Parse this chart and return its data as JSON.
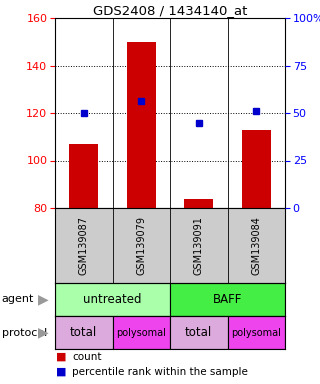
{
  "title": "GDS2408 / 1434140_at",
  "samples": [
    "GSM139087",
    "GSM139079",
    "GSM139091",
    "GSM139084"
  ],
  "bar_values": [
    107,
    150,
    84,
    113
  ],
  "bar_bottom": 80,
  "bar_color": "#cc0000",
  "dot_values": [
    120,
    125,
    116,
    121
  ],
  "dot_color": "#0000cc",
  "ylim": [
    80,
    160
  ],
  "y_ticks_left": [
    80,
    100,
    120,
    140,
    160
  ],
  "y_ticks_right": [
    0,
    25,
    50,
    75,
    100
  ],
  "y_right_labels": [
    "0",
    "25",
    "50",
    "75",
    "100%"
  ],
  "agent_labels": [
    "untreated",
    "BAFF"
  ],
  "agent_colors": [
    "#aaffaa",
    "#44ee44"
  ],
  "protocol_labels": [
    "total",
    "polysomal",
    "total",
    "polysomal"
  ],
  "protocol_colors": [
    "#ddaadd",
    "#ee44ee",
    "#ddaadd",
    "#ee44ee"
  ],
  "legend_count_color": "#cc0000",
  "legend_dot_color": "#0000cc",
  "bg_color": "#ffffff",
  "sample_bg_color": "#cccccc",
  "grid_dotted_color": "#000000"
}
